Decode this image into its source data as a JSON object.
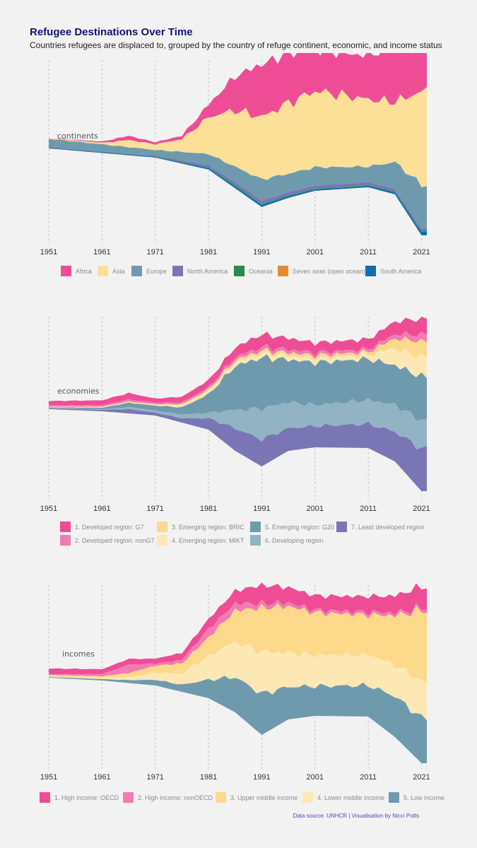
{
  "title": "Refugee Destinations Over Time",
  "subtitle": "Countries refugees are displaced to, grouped by the country of refuge continent, economic, and income status",
  "caption": "Data source: UNHCR  | Visualisation by Nicci Potts",
  "chart_data": [
    {
      "type": "area",
      "subtype": "streamgraph",
      "label": "continents",
      "x_ticks": [
        "1951",
        "1961",
        "1971",
        "1981",
        "1991",
        "2001",
        "2011",
        "2021"
      ],
      "x_range": [
        1951,
        2022
      ],
      "series": [
        {
          "name": "Africa",
          "color": "#ee4d96"
        },
        {
          "name": "Asia",
          "color": "#fde097"
        },
        {
          "name": "Europe",
          "color": "#6f9aad"
        },
        {
          "name": "North America",
          "color": "#7a76b5"
        },
        {
          "name": "Oceania",
          "color": "#258b52"
        },
        {
          "name": "Seven seas (open ocean)",
          "color": "#e38a2e"
        },
        {
          "name": "South America",
          "color": "#0c6fb3"
        }
      ]
    },
    {
      "type": "area",
      "subtype": "streamgraph",
      "label": "economies",
      "x_ticks": [
        "1951",
        "1961",
        "1971",
        "1981",
        "1991",
        "2001",
        "2011",
        "2021"
      ],
      "x_range": [
        1951,
        2022
      ],
      "series": [
        {
          "name": "1. Developed region: G7",
          "color": "#ee4d96"
        },
        {
          "name": "2. Developed region: nonG7",
          "color": "#f27bb3"
        },
        {
          "name": "3. Emerging region: BRIC",
          "color": "#fdd98b"
        },
        {
          "name": "4. Emerging region: MIKT",
          "color": "#fde8b4"
        },
        {
          "name": "5. Emerging region: G20",
          "color": "#6f9aad"
        },
        {
          "name": "6. Developing region",
          "color": "#92b3c3"
        },
        {
          "name": "7. Least developed region",
          "color": "#7a76b5"
        }
      ]
    },
    {
      "type": "area",
      "subtype": "streamgraph",
      "label": "incomes",
      "x_ticks": [
        "1951",
        "1961",
        "1971",
        "1981",
        "1991",
        "2001",
        "2011",
        "2021"
      ],
      "x_range": [
        1951,
        2022
      ],
      "series": [
        {
          "name": "1. High income: OECD",
          "color": "#ee4d96"
        },
        {
          "name": "2. High income: nonOECD",
          "color": "#f27bb3"
        },
        {
          "name": "3. Upper middle income",
          "color": "#fdd98b"
        },
        {
          "name": "4. Lower middle income",
          "color": "#fde8b4"
        },
        {
          "name": "5. Low income",
          "color": "#6f9aad"
        }
      ]
    }
  ]
}
